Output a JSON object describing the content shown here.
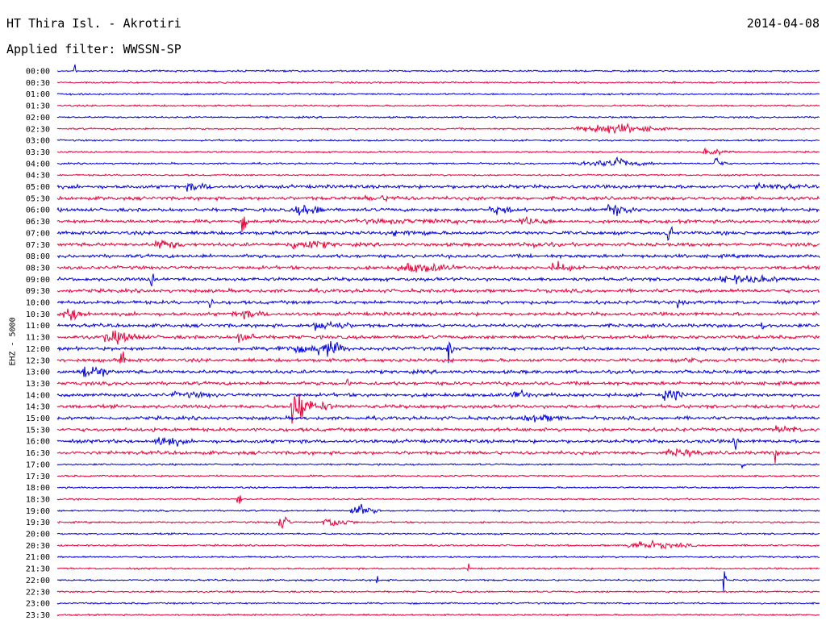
{
  "header": {
    "station": "HT Thira Isl. - Akrotiri",
    "date": "2014-04-08",
    "filter_label": "Applied filter:",
    "filter_value": "WWSSN-SP"
  },
  "chart_data": {
    "type": "line",
    "title": "HT Thira Isl. - Akrotiri",
    "ylabel": "EHZ - 5000",
    "xlabel": "",
    "grid": false,
    "rows": [
      "00:00",
      "00:30",
      "01:00",
      "01:30",
      "02:00",
      "02:30",
      "03:00",
      "03:30",
      "04:00",
      "04:30",
      "05:00",
      "05:30",
      "06:00",
      "06:30",
      "07:00",
      "07:30",
      "08:00",
      "08:30",
      "09:00",
      "09:30",
      "10:00",
      "10:30",
      "11:00",
      "11:30",
      "12:00",
      "12:30",
      "13:00",
      "13:30",
      "14:00",
      "14:30",
      "15:00",
      "15:30",
      "16:00",
      "16:30",
      "17:00",
      "17:30",
      "18:00",
      "18:30",
      "19:00",
      "19:30",
      "20:00",
      "20:30",
      "21:00",
      "21:30",
      "22:00",
      "22:30",
      "23:00",
      "23:30"
    ],
    "colors": [
      "#0000dd",
      "#e8003a"
    ],
    "series": [
      {
        "name": "EHZ",
        "description_note": ""
      }
    ]
  }
}
